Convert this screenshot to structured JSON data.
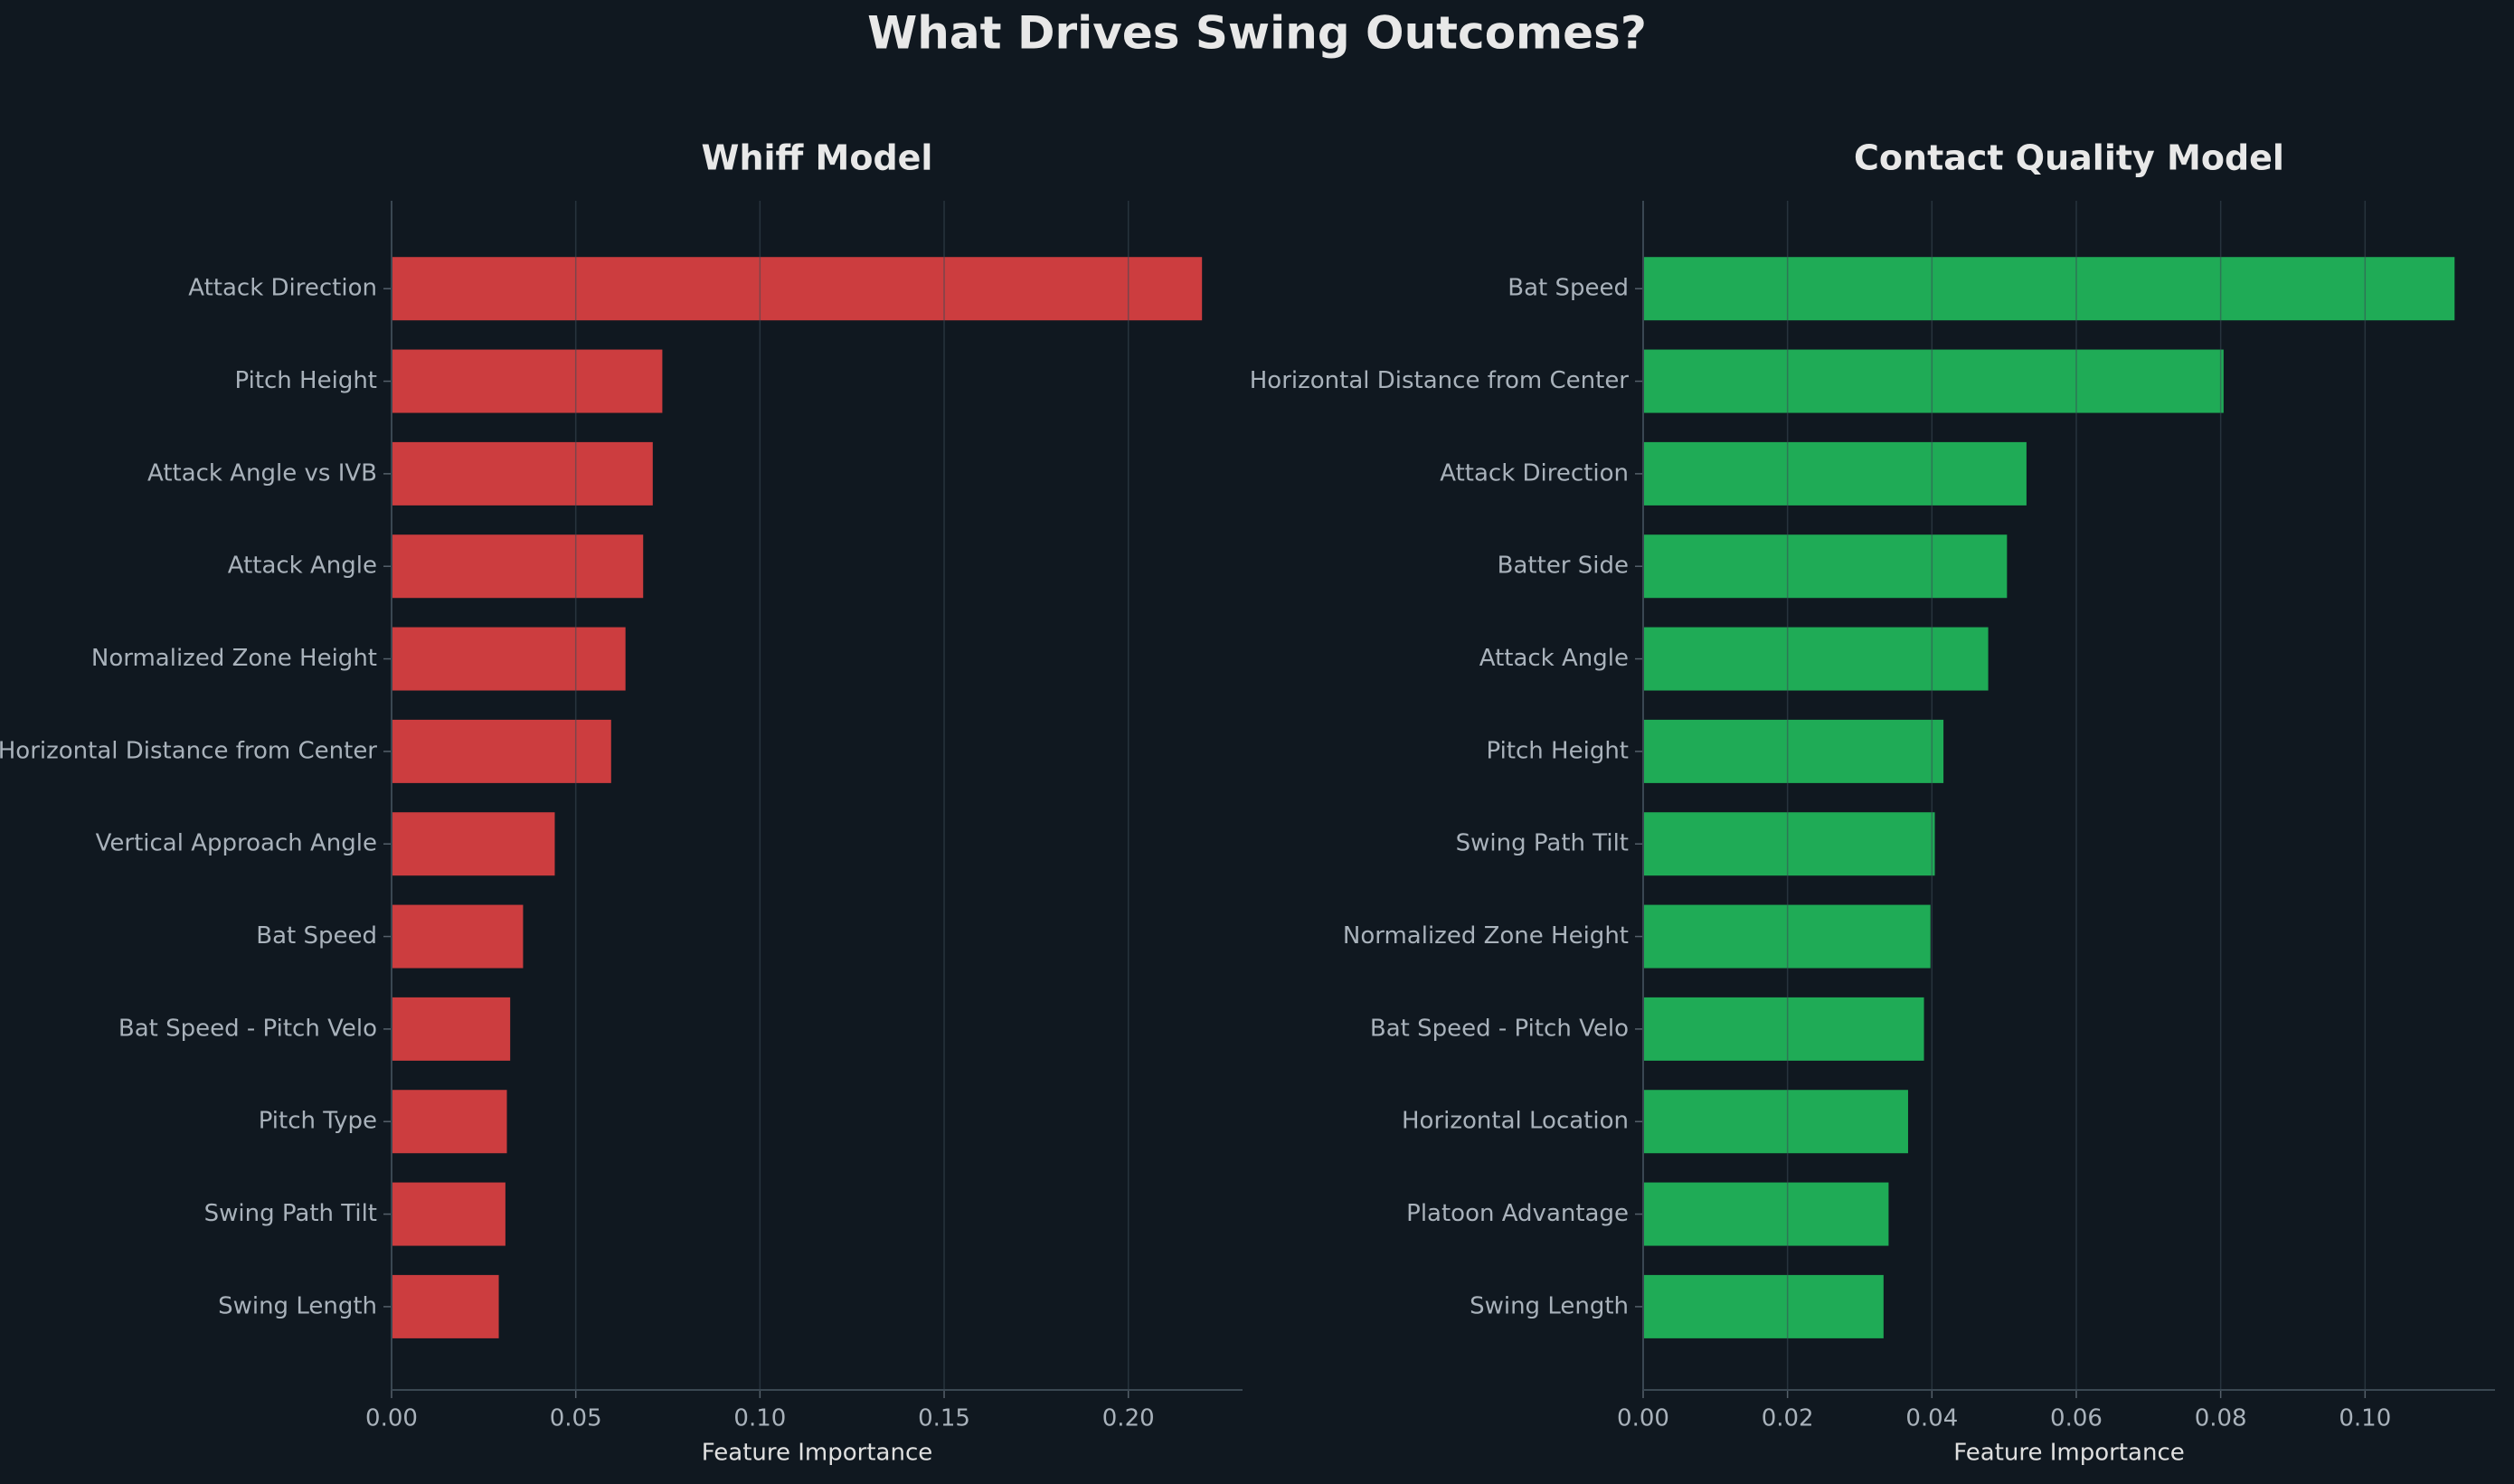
{
  "title": "What Drives Swing Outcomes?",
  "chart_data": [
    {
      "type": "barh",
      "title": "Whiff Model",
      "x_label": "Feature Importance",
      "color": "#cc3d3f",
      "categories": [
        "Attack Direction",
        "Pitch Height",
        "Attack Angle vs IVB",
        "Attack Angle",
        "Normalized Zone Height",
        "Horizontal Distance from Center",
        "Vertical Approach Angle",
        "Bat Speed",
        "Bat Speed - Pitch Velo",
        "Pitch Type",
        "Swing Path Tilt",
        "Swing Length"
      ],
      "values": [
        0.22,
        0.0735,
        0.0709,
        0.0683,
        0.0635,
        0.0596,
        0.0443,
        0.0357,
        0.0322,
        0.0313,
        0.0309,
        0.0291
      ],
      "xlim": [
        0,
        0.231
      ],
      "xticks": [
        {
          "value": 0,
          "label": "0.00"
        },
        {
          "value": 0.05,
          "label": "0.05"
        },
        {
          "value": 0.1,
          "label": "0.10"
        },
        {
          "value": 0.15,
          "label": "0.15"
        },
        {
          "value": 0.2,
          "label": "0.20"
        }
      ],
      "grid": true
    },
    {
      "type": "barh",
      "title": "Contact Quality Model",
      "x_label": "Feature Importance",
      "color": "#1fab56",
      "categories": [
        "Bat Speed",
        "Horizontal Distance from Center",
        "Attack Direction",
        "Batter Side",
        "Attack Angle",
        "Pitch Height",
        "Swing Path Tilt",
        "Normalized Zone Height",
        "Bat Speed - Pitch Velo",
        "Horizontal Location",
        "Platoon Advantage",
        "Swing Length"
      ],
      "values": [
        0.1124,
        0.0804,
        0.0531,
        0.0504,
        0.0478,
        0.0416,
        0.0404,
        0.0398,
        0.0389,
        0.0367,
        0.034,
        0.0333
      ],
      "xlim": [
        0,
        0.118
      ],
      "xticks": [
        {
          "value": 0,
          "label": "0.00"
        },
        {
          "value": 0.02,
          "label": "0.02"
        },
        {
          "value": 0.04,
          "label": "0.04"
        },
        {
          "value": 0.06,
          "label": "0.06"
        },
        {
          "value": 0.08,
          "label": "0.08"
        },
        {
          "value": 0.1,
          "label": "0.10"
        }
      ],
      "grid": true
    }
  ]
}
